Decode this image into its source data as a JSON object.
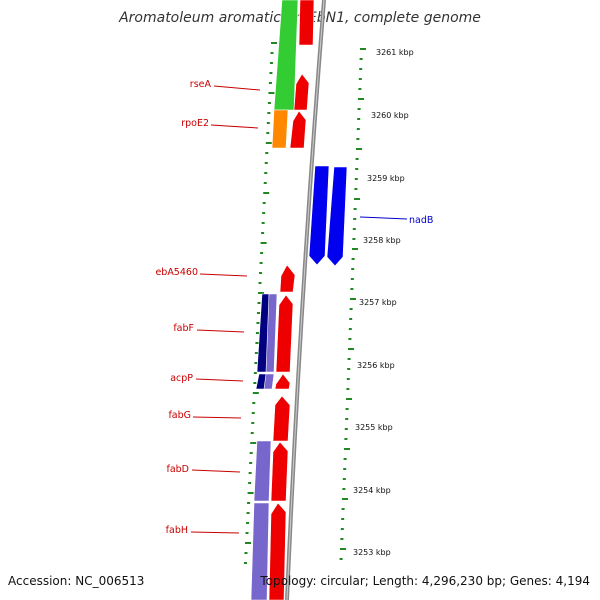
{
  "title": "Aromatoleum aromaticum EbN1, complete genome",
  "footer": {
    "accession": "Accession: NC_006513",
    "topology": "Topology: circular; Length: 4,296,230 bp; Genes: 4,194"
  },
  "colors": {
    "label_red": "#c80000",
    "label_blue": "#0000c8",
    "forward_cds": "#ee0000",
    "reverse_cds": "#0000ee",
    "gene_green": "#33cc33",
    "gene_orange": "#ff8800",
    "gene_navy": "#000080",
    "gene_lavender": "#7766cc",
    "tick_green": "#228822",
    "backbone": "#888888"
  },
  "chart_data": {
    "type": "genome-map",
    "unit": "kbp",
    "tick_labels": [
      "3261 kbp",
      "3260 kbp",
      "3259 kbp",
      "3258 kbp",
      "3257 kbp",
      "3256 kbp",
      "3255 kbp",
      "3254 kbp",
      "3253 kbp"
    ],
    "gene_labels": [
      {
        "name": "rseA",
        "strand": "forward"
      },
      {
        "name": "rpoE2",
        "strand": "forward"
      },
      {
        "name": "nadB",
        "strand": "reverse"
      },
      {
        "name": "ebA5460",
        "strand": "forward"
      },
      {
        "name": "fabF",
        "strand": "forward"
      },
      {
        "name": "acpP",
        "strand": "forward"
      },
      {
        "name": "fabG",
        "strand": "forward"
      },
      {
        "name": "fabD",
        "strand": "forward"
      },
      {
        "name": "fabH",
        "strand": "forward"
      }
    ]
  }
}
